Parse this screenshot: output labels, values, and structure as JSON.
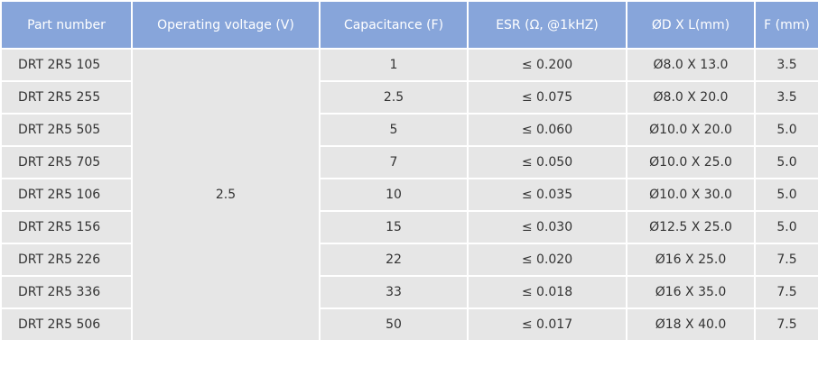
{
  "table": {
    "header": [
      "Part number",
      "Operating voltage (V)",
      "Capacitance (F)",
      "ESR (Ω, @1kHZ)",
      "ØD X L(mm)",
      "F (mm)"
    ],
    "voltage": "2.5",
    "rows": [
      [
        "DRT 2R5 105",
        "1",
        "≤ 0.200",
        "Ø8.0 X 13.0",
        "3.5"
      ],
      [
        "DRT 2R5 255",
        "2.5",
        "≤ 0.075",
        "Ø8.0 X 20.0",
        "3.5"
      ],
      [
        "DRT 2R5 505",
        "5",
        "≤ 0.060",
        "Ø10.0 X 20.0",
        "5.0"
      ],
      [
        "DRT 2R5 705",
        "7",
        "≤ 0.050",
        "Ø10.0 X 25.0",
        "5.0"
      ],
      [
        "DRT 2R5 106",
        "10",
        "≤ 0.035",
        "Ø10.0 X 30.0",
        "5.0"
      ],
      [
        "DRT 2R5 156",
        "15",
        "≤ 0.030",
        "Ø12.5 X 25.0",
        "5.0"
      ],
      [
        "DRT 2R5 226",
        "22",
        "≤ 0.020",
        "Ø16 X 25.0",
        "7.5"
      ],
      [
        "DRT 2R5 336",
        "33",
        "≤ 0.018",
        "Ø16 X 35.0",
        "7.5"
      ],
      [
        "DRT 2R5 506",
        "50",
        "≤ 0.017",
        "Ø18 X 40.0",
        "7.5"
      ]
    ]
  }
}
